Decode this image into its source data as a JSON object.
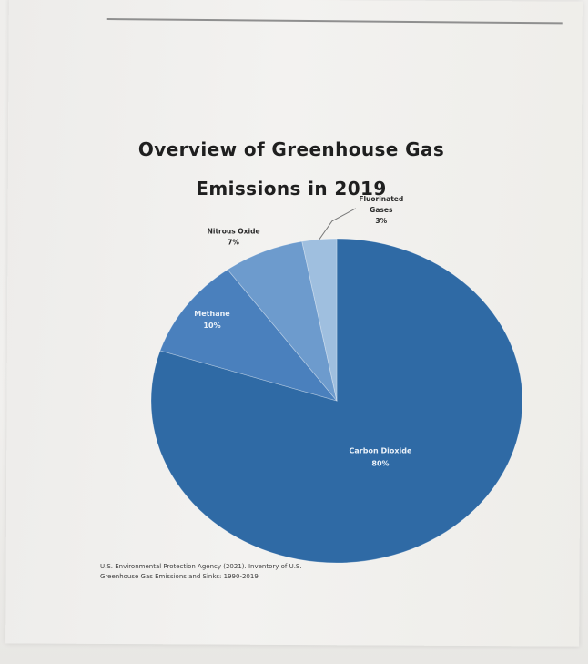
{
  "chart_data": {
    "type": "pie",
    "title_lines": [
      "Overview of Greenhouse Gas",
      "Emissions in 2019"
    ],
    "slices": [
      {
        "label": "Carbon Dioxide",
        "value": 80,
        "value_text": "80%",
        "color": "#2f6aa5"
      },
      {
        "label": "Methane",
        "value": 10,
        "value_text": "10%",
        "color": "#4a80bd"
      },
      {
        "label": "Nitrous Oxide",
        "value": 7,
        "value_text": "7%",
        "color": "#6d9bcd"
      },
      {
        "label": "Fluorinated Gases",
        "label_lines": [
          "Fluorinated",
          "Gases"
        ],
        "value": 3,
        "value_text": "3%",
        "color": "#9fbfdf"
      }
    ]
  },
  "source": {
    "line1": "U.S. Environmental Protection Agency (2021). Inventory of U.S.",
    "line2": "Greenhouse Gas Emissions and Sinks: 1990-2019"
  },
  "colors": {
    "paper": "#f1f0ee",
    "title_text": "#1f1f1f",
    "inside_label_text": "#eaf1f9",
    "outside_label_text": "#2a2a2a",
    "leader_line": "#7a7a7a"
  }
}
